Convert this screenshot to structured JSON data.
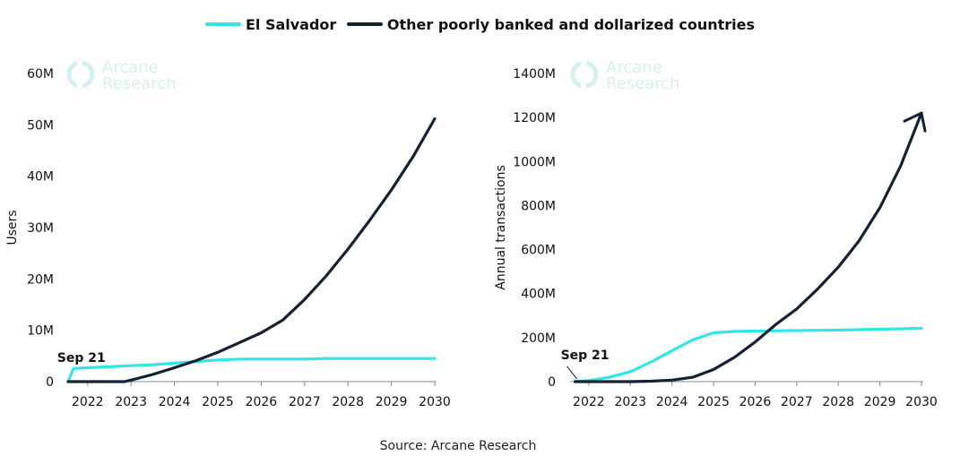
{
  "legend": {
    "el_salvador": "El Salvador",
    "other": "Other poorly banked and dollarized countries"
  },
  "colors": {
    "el_salvador": "#33e6e6",
    "other": "#142033",
    "watermark": "#d5eef0"
  },
  "watermark": {
    "line1": "Arcane",
    "line2": "Research"
  },
  "source": "Source: Arcane Research",
  "chart_data": [
    {
      "type": "line",
      "title": "",
      "xlabel": "",
      "ylabel": "Users",
      "xlim": [
        2021.55,
        2030
      ],
      "ylim": [
        0,
        60
      ],
      "x_ticks": [
        2022,
        2023,
        2024,
        2025,
        2026,
        2027,
        2028,
        2029,
        2030
      ],
      "x_tick_labels": [
        "2022",
        "2023",
        "2024",
        "2025",
        "2026",
        "2027",
        "2028",
        "2029",
        "2030"
      ],
      "y_ticks": [
        0,
        10,
        20,
        30,
        40,
        50,
        60
      ],
      "y_tick_labels": [
        "0",
        "10M",
        "20M",
        "30M",
        "40M",
        "50M",
        "60M"
      ],
      "annotation": "Sep 21",
      "series": [
        {
          "name": "El Salvador",
          "color_key": "el_salvador",
          "x": [
            2021.55,
            2021.67,
            2021.75,
            2022,
            2022.5,
            2023,
            2023.5,
            2024,
            2024.5,
            2025,
            2025.5,
            2026,
            2026.5,
            2027,
            2027.5,
            2028,
            2028.5,
            2029,
            2029.5,
            2030
          ],
          "y": [
            0,
            2.5,
            2.6,
            2.7,
            2.9,
            3.1,
            3.3,
            3.6,
            3.9,
            4.2,
            4.4,
            4.4,
            4.4,
            4.4,
            4.5,
            4.5,
            4.5,
            4.5,
            4.5,
            4.5
          ]
        },
        {
          "name": "Other poorly banked and dollarized countries",
          "color_key": "other",
          "x": [
            2021.55,
            2022,
            2022.5,
            2022.85,
            2023,
            2023.5,
            2024,
            2024.5,
            2025,
            2025.5,
            2026,
            2026.5,
            2027,
            2027.5,
            2028,
            2028.5,
            2029,
            2029.5,
            2030
          ],
          "y": [
            0,
            0,
            0,
            0,
            0.3,
            1.4,
            2.7,
            4.1,
            5.7,
            7.6,
            9.5,
            12,
            16,
            20.6,
            25.8,
            31.4,
            37.3,
            43.8,
            51.2
          ]
        }
      ]
    },
    {
      "type": "line",
      "title": "",
      "xlabel": "",
      "ylabel": "Annual transactions",
      "xlim": [
        2021.55,
        2030
      ],
      "ylim": [
        0,
        1400
      ],
      "x_ticks": [
        2022,
        2023,
        2024,
        2025,
        2026,
        2027,
        2028,
        2029,
        2030
      ],
      "x_tick_labels": [
        "2022",
        "2023",
        "2024",
        "2025",
        "2026",
        "2027",
        "2028",
        "2029",
        "2030"
      ],
      "y_ticks": [
        0,
        200,
        400,
        600,
        800,
        1000,
        1200,
        1400
      ],
      "y_tick_labels": [
        "0",
        "200M",
        "400M",
        "600M",
        "800M",
        "1000M",
        "1200M",
        "1400M"
      ],
      "annotation": "Sep 21",
      "arrow_on_series": "Other poorly banked and dollarized countries",
      "series": [
        {
          "name": "El Salvador",
          "color_key": "el_salvador",
          "x": [
            2021.67,
            2022,
            2022.5,
            2023,
            2023.5,
            2024,
            2024.5,
            2025,
            2025.5,
            2026,
            2026.5,
            2027,
            2027.5,
            2028,
            2028.5,
            2029,
            2029.5,
            2030
          ],
          "y": [
            0,
            5,
            20,
            45,
            90,
            140,
            190,
            222,
            228,
            230,
            231,
            232,
            233,
            234,
            236,
            238,
            240,
            242
          ]
        },
        {
          "name": "Other poorly banked and dollarized countries",
          "color_key": "other",
          "x": [
            2021.67,
            2023,
            2023.5,
            2024,
            2024.5,
            2025,
            2025.5,
            2026,
            2026.5,
            2027,
            2027.5,
            2028,
            2028.5,
            2029,
            2029.5,
            2030
          ],
          "y": [
            0,
            0,
            2,
            7,
            20,
            55,
            110,
            180,
            260,
            330,
            420,
            520,
            640,
            790,
            980,
            1220
          ]
        }
      ]
    }
  ]
}
